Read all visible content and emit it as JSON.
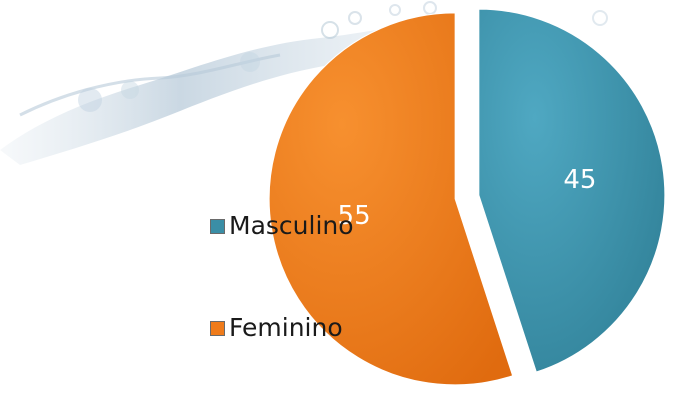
{
  "chart_data": {
    "type": "pie",
    "slices": [
      {
        "label": "Masculino",
        "value": 45,
        "color": "#3a8ea6"
      },
      {
        "label": "Feminino",
        "value": 55,
        "color": "#ef7b1a"
      }
    ],
    "exploded": true,
    "legend_position": "left",
    "data_labels": true
  },
  "legend": {
    "items": [
      {
        "label": "Masculino",
        "color": "#3a8ea6"
      },
      {
        "label": "Feminino",
        "color": "#ef7b1a"
      }
    ]
  },
  "decoration": {
    "background_image": "water-splash"
  }
}
